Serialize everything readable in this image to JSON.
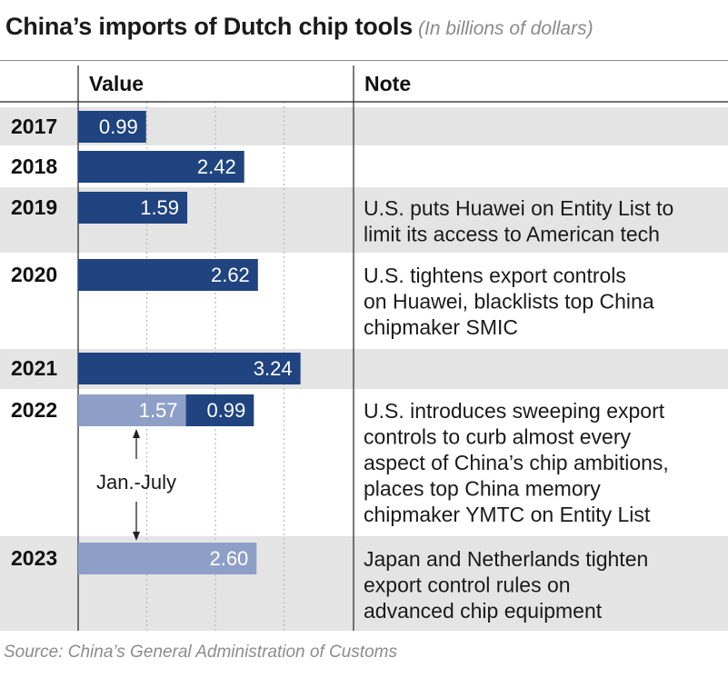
{
  "header": {
    "title": "China’s imports of Dutch chip tools",
    "subtitle": "(In billions of dollars)"
  },
  "columns": {
    "value": "Value",
    "note": "Note"
  },
  "chart_data": {
    "type": "bar",
    "orientation": "horizontal",
    "title": "China’s imports of Dutch chip tools",
    "subtitle": "(In billions of dollars)",
    "categories": [
      "2017",
      "2018",
      "2019",
      "2020",
      "2021",
      "2022",
      "2023"
    ],
    "xlim": [
      0,
      4
    ],
    "grid": true,
    "rows": [
      {
        "year": "2017",
        "segments": [
          {
            "value": 0.99,
            "label": "0.99",
            "kind": "full"
          }
        ],
        "note": []
      },
      {
        "year": "2018",
        "segments": [
          {
            "value": 2.42,
            "label": "2.42",
            "kind": "full"
          }
        ],
        "note": []
      },
      {
        "year": "2019",
        "segments": [
          {
            "value": 1.59,
            "label": "1.59",
            "kind": "full"
          }
        ],
        "note": [
          "U.S. puts Huawei on Entity List to",
          "limit its access to American tech"
        ]
      },
      {
        "year": "2020",
        "segments": [
          {
            "value": 2.62,
            "label": "2.62",
            "kind": "full"
          }
        ],
        "note": [
          "U.S. tightens export controls",
          "on Huawei, blacklists top China",
          "chipmaker SMIC"
        ]
      },
      {
        "year": "2021",
        "segments": [
          {
            "value": 3.24,
            "label": "3.24",
            "kind": "full"
          }
        ],
        "note": []
      },
      {
        "year": "2022",
        "segments": [
          {
            "value": 1.57,
            "label": "1.57",
            "kind": "jan-july"
          },
          {
            "value": 0.99,
            "label": "0.99",
            "kind": "full"
          }
        ],
        "note": [
          "U.S. introduces sweeping export",
          "controls to curb almost every",
          "aspect of China’s chip ambitions,",
          "places top China memory",
          "chipmaker YMTC on Entity List"
        ]
      },
      {
        "year": "2023",
        "segments": [
          {
            "value": 2.6,
            "label": "2.60",
            "kind": "jan-july"
          }
        ],
        "note": [
          "Japan and Netherlands tighten",
          "export control rules on",
          "advanced chip equipment"
        ]
      }
    ],
    "annotation": "Jan.-July",
    "colors": {
      "full": "#1f4480",
      "jan-july": "#8e9fc7",
      "stripe": "#e4e4e4",
      "grid": "#b8b8b8"
    }
  },
  "source": "Source: China’s General Administration of Customs"
}
